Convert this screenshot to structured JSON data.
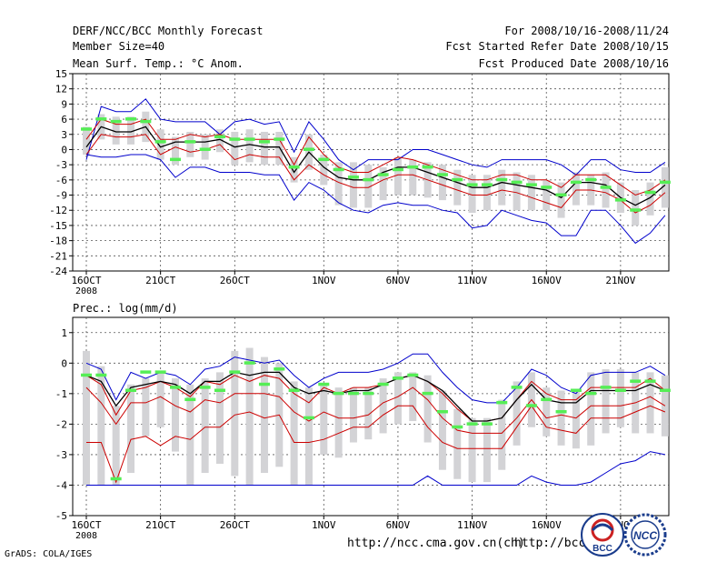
{
  "header": {
    "title": "DERF/NCC/BCC Monthly Forecast",
    "member_size": "Member Size=40",
    "variable": "Mean Surf. Temp.: °C Anom.",
    "period": "For 2008/10/16-2008/11/24",
    "started": "Fcst Started Refer Date 2008/10/15",
    "produced": "Fcst Produced Date 2008/10/16"
  },
  "footer": {
    "grads": "GrADS: COLA/IGES",
    "url1": "http://ncc.cma.gov.cn(ch)",
    "url2": "http://bcc.c",
    "logo_bcc_text": "BCC",
    "logo_ncc_text": "NCC"
  },
  "colors": {
    "envelope": "#0000cc",
    "spread": "#cc0000",
    "mean": "#000000",
    "box": "#d3d3d6",
    "median": "#55ee55"
  },
  "chart_data": [
    {
      "type": "line",
      "title": "Mean Surf. Temp.: °C Anom.",
      "xlabel": "",
      "ylabel": "°C Anom.",
      "ylim": [
        -24,
        15
      ],
      "yticks": [
        15,
        12,
        9,
        6,
        3,
        0,
        -3,
        -6,
        -9,
        -12,
        -15,
        -18,
        -21,
        -24
      ],
      "xticks": [
        {
          "label": "16OCT",
          "day": 1,
          "sub": "2008"
        },
        {
          "label": "21OCT",
          "day": 6
        },
        {
          "label": "26OCT",
          "day": 11
        },
        {
          "label": "1NOV",
          "day": 17
        },
        {
          "label": "6NOV",
          "day": 22
        },
        {
          "label": "11NOV",
          "day": 27
        },
        {
          "label": "16NOV",
          "day": 32
        },
        {
          "label": "21NOV",
          "day": 37
        }
      ],
      "x": [
        1,
        2,
        3,
        4,
        5,
        6,
        7,
        8,
        9,
        10,
        11,
        12,
        13,
        14,
        15,
        16,
        17,
        18,
        19,
        20,
        21,
        22,
        23,
        24,
        25,
        26,
        27,
        28,
        29,
        30,
        31,
        32,
        33,
        34,
        35,
        36,
        37,
        38,
        39,
        40
      ],
      "series": [
        {
          "name": "max",
          "color": "blue",
          "values": [
            -2,
            8.5,
            7.5,
            7.5,
            10,
            6,
            5.5,
            5.5,
            5.5,
            3,
            5.5,
            6,
            5,
            5.5,
            -0.5,
            5.5,
            2,
            -2,
            -4,
            -2,
            -2,
            -2,
            0,
            0,
            -1,
            -2,
            -3,
            -3.5,
            -2,
            -2,
            -2,
            -2,
            -3,
            -5,
            -2,
            -2,
            -4,
            -4.5,
            -4.5,
            -2.5
          ]
        },
        {
          "name": "spread_upper",
          "color": "red",
          "values": [
            2,
            6,
            5,
            5,
            6,
            2,
            2,
            3,
            2.5,
            3,
            2,
            2,
            2,
            2,
            -3,
            2.5,
            -1,
            -3.5,
            -4.5,
            -4.5,
            -3,
            -1.5,
            -2,
            -3,
            -4,
            -5,
            -6,
            -6,
            -5,
            -5,
            -6,
            -6,
            -7.5,
            -5,
            -5,
            -5,
            -7,
            -9,
            -8,
            -6
          ]
        },
        {
          "name": "mean",
          "color": "black",
          "values": [
            0.5,
            4.5,
            3.5,
            3.5,
            4.5,
            0.5,
            1.5,
            1.5,
            1.5,
            2,
            0.5,
            1,
            0.5,
            0.5,
            -4.5,
            -0.5,
            -3.5,
            -5.5,
            -6,
            -6,
            -4.5,
            -3.5,
            -3.5,
            -4.5,
            -5.5,
            -6.5,
            -7.5,
            -7.5,
            -6.5,
            -7,
            -7.5,
            -8,
            -9.5,
            -6.5,
            -6.5,
            -7,
            -9.5,
            -11,
            -9.5,
            -7
          ]
        },
        {
          "name": "spread_lower",
          "color": "red",
          "values": [
            -1,
            3,
            2.5,
            2.5,
            3,
            -1,
            0.5,
            -0.5,
            0,
            1,
            -2,
            -1,
            -1.5,
            -1.5,
            -6,
            -3,
            -5,
            -6.5,
            -7.5,
            -7.5,
            -6,
            -5,
            -5,
            -6,
            -7,
            -8,
            -9,
            -9,
            -8,
            -8.5,
            -9.5,
            -10.5,
            -11.5,
            -8,
            -8,
            -8.5,
            -10,
            -12.5,
            -11,
            -8.5
          ]
        },
        {
          "name": "min",
          "color": "blue",
          "values": [
            -1,
            -1.5,
            -1.5,
            -1,
            -1,
            -2,
            -5.5,
            -3.5,
            -3.5,
            -4.5,
            -4.5,
            -4.5,
            -5,
            -5,
            -10,
            -6.5,
            -8,
            -10.5,
            -12,
            -12.5,
            -11,
            -10.5,
            -11,
            -11,
            -12,
            -12.5,
            -15.5,
            -15,
            -12,
            -13,
            -14,
            -14.5,
            -17,
            -17,
            -12,
            -12,
            -15,
            -18.5,
            -16.5,
            -13
          ]
        }
      ],
      "boxes": [
        {
          "low": -1,
          "high": 4.5,
          "median": 4
        },
        {
          "low": 2,
          "high": 7,
          "median": 6
        },
        {
          "low": 1,
          "high": 6.5,
          "median": 5.5
        },
        {
          "low": 1,
          "high": 6.5,
          "median": 6
        },
        {
          "low": 1.5,
          "high": 7.5,
          "median": 5.5
        },
        {
          "low": -2,
          "high": 4,
          "median": 1.5
        },
        {
          "low": -3,
          "high": 2.5,
          "median": -2
        },
        {
          "low": -1.5,
          "high": 3.5,
          "median": 1.5
        },
        {
          "low": -2,
          "high": 3,
          "median": 0
        },
        {
          "low": -0.5,
          "high": 4,
          "median": 2.5
        },
        {
          "low": -3,
          "high": 3.5,
          "median": 2
        },
        {
          "low": -2.5,
          "high": 4,
          "median": 2
        },
        {
          "low": -3,
          "high": 3.5,
          "median": 1.5
        },
        {
          "low": -3,
          "high": 3.5,
          "median": 2
        },
        {
          "low": -6.5,
          "high": -1.5,
          "median": -3.5
        },
        {
          "low": -4,
          "high": 3,
          "median": 0
        },
        {
          "low": -7,
          "high": -1,
          "median": -2
        },
        {
          "low": -11,
          "high": -2.5,
          "median": -4
        },
        {
          "low": -11.5,
          "high": -2.5,
          "median": -5.5
        },
        {
          "low": -11.5,
          "high": -3,
          "median": -6
        },
        {
          "low": -10,
          "high": -3.5,
          "median": -5
        },
        {
          "low": -9,
          "high": -1.5,
          "median": -4
        },
        {
          "low": -9,
          "high": -2,
          "median": -3.5
        },
        {
          "low": -9.5,
          "high": -2.5,
          "median": -3.5
        },
        {
          "low": -10,
          "high": -3,
          "median": -5
        },
        {
          "low": -11,
          "high": -4,
          "median": -6
        },
        {
          "low": -12.5,
          "high": -5,
          "median": -7
        },
        {
          "low": -12,
          "high": -5,
          "median": -7
        },
        {
          "low": -11,
          "high": -4,
          "median": -6
        },
        {
          "low": -12,
          "high": -4.5,
          "median": -6.5
        },
        {
          "low": -12,
          "high": -5,
          "median": -7
        },
        {
          "low": -12,
          "high": -6,
          "median": -7.5
        },
        {
          "low": -13.5,
          "high": -6.5,
          "median": -9
        },
        {
          "low": -11,
          "high": -4.5,
          "median": -6.5
        },
        {
          "low": -11,
          "high": -5,
          "median": -6
        },
        {
          "low": -11.5,
          "high": -4.5,
          "median": -7.5
        },
        {
          "low": -12.5,
          "high": -6.5,
          "median": -10
        },
        {
          "low": -15,
          "high": -8,
          "median": -12
        },
        {
          "low": -13,
          "high": -6.5,
          "median": -8.5
        },
        {
          "low": -11.5,
          "high": -3.5,
          "median": -6.5
        }
      ]
    },
    {
      "type": "line",
      "title": "Prec.: log(mm/d)",
      "xlabel": "",
      "ylabel": "log(mm/d)",
      "ylim": [
        -5,
        1.5
      ],
      "yticks": [
        1,
        0,
        -1,
        -2,
        -3,
        -4,
        -5
      ],
      "xticks": [
        {
          "label": "16OCT",
          "day": 1,
          "sub": "2008"
        },
        {
          "label": "21OCT",
          "day": 6
        },
        {
          "label": "26OCT",
          "day": 11
        },
        {
          "label": "1NOV",
          "day": 17
        },
        {
          "label": "6NOV",
          "day": 22
        },
        {
          "label": "11NOV",
          "day": 27
        },
        {
          "label": "16NOV",
          "day": 32
        },
        {
          "label": "21NOV",
          "day": 37
        }
      ],
      "x": [
        1,
        2,
        3,
        4,
        5,
        6,
        7,
        8,
        9,
        10,
        11,
        12,
        13,
        14,
        15,
        16,
        17,
        18,
        19,
        20,
        21,
        22,
        23,
        24,
        25,
        26,
        27,
        28,
        29,
        30,
        31,
        32,
        33,
        34,
        35,
        36,
        37,
        38,
        39,
        40
      ],
      "series": [
        {
          "name": "max",
          "color": "blue",
          "values": [
            0,
            -0.2,
            -1.2,
            -0.3,
            -0.5,
            -0.3,
            -0.4,
            -0.7,
            -0.2,
            -0.1,
            0.2,
            0.1,
            0,
            0.1,
            -0.4,
            -0.8,
            -0.5,
            -0.3,
            -0.3,
            -0.3,
            -0.2,
            0,
            0.3,
            0.3,
            -0.3,
            -0.8,
            -1.2,
            -1.3,
            -1.3,
            -0.8,
            -0.2,
            -0.4,
            -0.8,
            -1,
            -0.4,
            -0.3,
            -0.3,
            -0.3,
            -0.1,
            -0.4
          ]
        },
        {
          "name": "spread_upper",
          "color": "red",
          "values": [
            -0.4,
            -0.7,
            -1.7,
            -0.9,
            -0.8,
            -0.6,
            -0.8,
            -1.1,
            -0.6,
            -0.7,
            -0.4,
            -0.6,
            -0.4,
            -0.5,
            -1,
            -1.3,
            -0.8,
            -1,
            -0.8,
            -0.8,
            -0.7,
            -0.5,
            -0.4,
            -0.6,
            -1,
            -1.5,
            -1.9,
            -1.9,
            -1.8,
            -1.2,
            -0.6,
            -1,
            -1.2,
            -1.2,
            -0.8,
            -0.8,
            -0.8,
            -0.8,
            -0.5,
            -0.9
          ]
        },
        {
          "name": "mean",
          "color": "black",
          "values": [
            -0.4,
            -0.6,
            -1.4,
            -0.8,
            -0.7,
            -0.6,
            -0.7,
            -1,
            -0.6,
            -0.6,
            -0.3,
            -0.4,
            -0.3,
            -0.3,
            -0.8,
            -1,
            -0.9,
            -1,
            -0.9,
            -0.9,
            -0.7,
            -0.5,
            -0.4,
            -0.6,
            -0.9,
            -1.4,
            -1.9,
            -1.9,
            -1.8,
            -1.2,
            -0.7,
            -1.2,
            -1.3,
            -1.3,
            -0.9,
            -0.9,
            -0.9,
            -0.9,
            -0.7,
            -0.9
          ]
        },
        {
          "name": "spread_lower",
          "color": "red",
          "values": [
            -0.8,
            -1.3,
            -2,
            -1.3,
            -1.3,
            -1.1,
            -1.4,
            -1.6,
            -1.2,
            -1.3,
            -1,
            -1,
            -1,
            -1.1,
            -1.6,
            -1.9,
            -1.6,
            -1.8,
            -1.8,
            -1.7,
            -1.3,
            -1.1,
            -0.8,
            -1.2,
            -1.8,
            -2.2,
            -2.3,
            -2.3,
            -2.3,
            -1.8,
            -1.2,
            -1.8,
            -1.7,
            -1.8,
            -1.4,
            -1.4,
            -1.4,
            -1.3,
            -1.1,
            -1.4
          ]
        },
        {
          "name": "spread_low2",
          "color": "red",
          "values": [
            -2.6,
            -2.6,
            -3.9,
            -2.5,
            -2.4,
            -2.7,
            -2.4,
            -2.5,
            -2.1,
            -2.1,
            -1.7,
            -1.6,
            -1.8,
            -1.7,
            -2.6,
            -2.6,
            -2.5,
            -2.3,
            -2.1,
            -2.1,
            -1.7,
            -1.4,
            -1.4,
            -2.1,
            -2.6,
            -2.8,
            -2.8,
            -2.8,
            -2.8,
            -2.1,
            -1.4,
            -2.1,
            -2.2,
            -2.3,
            -1.8,
            -1.8,
            -1.8,
            -1.6,
            -1.4,
            -1.6
          ]
        },
        {
          "name": "min",
          "color": "blue",
          "values": [
            -4,
            -4,
            -4,
            -4,
            -4,
            -4,
            -4,
            -4,
            -4,
            -4,
            -4,
            -4,
            -4,
            -4,
            -4,
            -4,
            -4,
            -4,
            -4,
            -4,
            -4,
            -4,
            -4,
            -3.7,
            -4,
            -4,
            -4,
            -4,
            -4,
            -4,
            -3.7,
            -3.9,
            -4,
            -4,
            -3.9,
            -3.6,
            -3.3,
            -3.2,
            -2.9,
            -3
          ]
        }
      ],
      "boxes": [
        {
          "low": -4,
          "high": 0.4,
          "median": -0.4
        },
        {
          "low": -4,
          "high": -0.1,
          "median": -0.4
        },
        {
          "low": -4,
          "high": -1.4,
          "median": -3.8
        },
        {
          "low": -3.6,
          "high": -0.7,
          "median": -0.9
        },
        {
          "low": -2.4,
          "high": -0.5,
          "median": -0.3
        },
        {
          "low": -2.1,
          "high": -0.3,
          "median": -0.3
        },
        {
          "low": -2.9,
          "high": -0.5,
          "median": -0.8
        },
        {
          "low": -4,
          "high": -0.7,
          "median": -1.2
        },
        {
          "low": -3.6,
          "high": -0.5,
          "median": -0.8
        },
        {
          "low": -3.3,
          "high": -0.3,
          "median": -0.9
        },
        {
          "low": -3.7,
          "high": 0.4,
          "median": -0.3
        },
        {
          "low": -4,
          "high": 0.5,
          "median": 0
        },
        {
          "low": -3.6,
          "high": 0.2,
          "median": -0.7
        },
        {
          "low": -3.4,
          "high": 0,
          "median": -0.2
        },
        {
          "low": -4,
          "high": -0.6,
          "median": -0.9
        },
        {
          "low": -4,
          "high": -0.8,
          "median": -1.8
        },
        {
          "low": -3,
          "high": -0.7,
          "median": -0.7
        },
        {
          "low": -3.1,
          "high": -0.8,
          "median": -1
        },
        {
          "low": -2.6,
          "high": -0.8,
          "median": -1
        },
        {
          "low": -2.5,
          "high": -0.8,
          "median": -1
        },
        {
          "low": -2.3,
          "high": -0.5,
          "median": -0.7
        },
        {
          "low": -2,
          "high": -0.3,
          "median": -0.5
        },
        {
          "low": -1.9,
          "high": -0.3,
          "median": -0.4
        },
        {
          "low": -2.6,
          "high": -0.4,
          "median": -1
        },
        {
          "low": -3.5,
          "high": -0.9,
          "median": -1.6
        },
        {
          "low": -3.8,
          "high": -1.5,
          "median": -2.1
        },
        {
          "low": -3.9,
          "high": -1.8,
          "median": -2
        },
        {
          "low": -3.9,
          "high": -1.8,
          "median": -2
        },
        {
          "low": -3.5,
          "high": -1.2,
          "median": -1.3
        },
        {
          "low": -2.7,
          "high": -0.6,
          "median": -0.8
        },
        {
          "low": -2.1,
          "high": -0.3,
          "median": -1.4
        },
        {
          "low": -2.4,
          "high": -0.8,
          "median": -1.2
        },
        {
          "low": -2.7,
          "high": -0.9,
          "median": -1.6
        },
        {
          "low": -2.8,
          "high": -0.9,
          "median": -0.9
        },
        {
          "low": -2.7,
          "high": -0.3,
          "median": -1
        },
        {
          "low": -2.3,
          "high": -0.2,
          "median": -0.8
        },
        {
          "low": -2.1,
          "high": -0.2,
          "median": -0.9
        },
        {
          "low": -2.3,
          "high": -0.3,
          "median": -0.6
        },
        {
          "low": -2.3,
          "high": -0.3,
          "median": -0.6
        },
        {
          "low": -2.4,
          "high": -0.4,
          "median": -0.9
        }
      ]
    }
  ]
}
